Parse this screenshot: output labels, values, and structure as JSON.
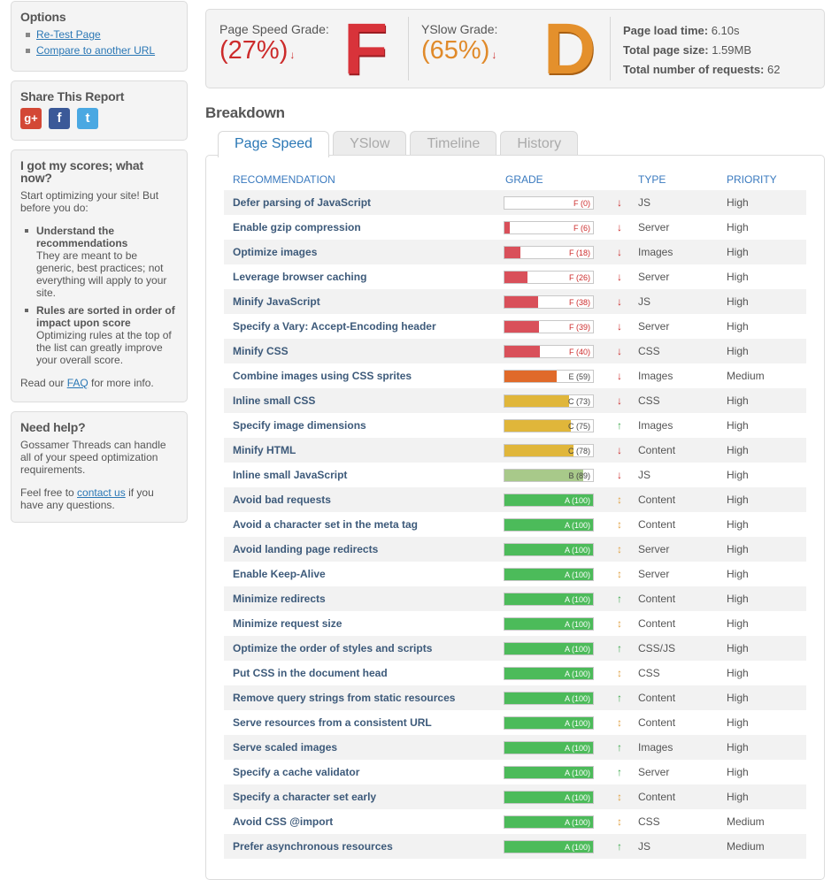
{
  "sidebar": {
    "options": {
      "title": "Options",
      "links": [
        "Re-Test Page",
        "Compare to another URL"
      ]
    },
    "share": {
      "title": "Share This Report",
      "icons": [
        "google-plus-icon",
        "facebook-icon",
        "twitter-icon"
      ],
      "icon_glyphs": [
        "g+",
        "f",
        "t"
      ]
    },
    "scores": {
      "title": "I got my scores; what now?",
      "intro": "Start optimizing your site! But before you do:",
      "tips": [
        {
          "heading": "Understand the recommendations",
          "body": "They are meant to be generic, best practices; not everything will apply to your site."
        },
        {
          "heading": "Rules are sorted in order of impact upon score",
          "body": "Optimizing rules at the top of the list can greatly improve your overall score."
        }
      ],
      "faq_pre": "Read our ",
      "faq_link": "FAQ",
      "faq_post": " for more info."
    },
    "help": {
      "title": "Need help?",
      "body": "Gossamer Threads can handle all of your speed optimization requirements.",
      "contact_pre": "Feel free to ",
      "contact_link": "contact us",
      "contact_post": " if you have any questions."
    }
  },
  "summary": {
    "pagespeed": {
      "label": "Page Speed Grade:",
      "value": "(27%)",
      "arrow": "↓",
      "letter": "F",
      "color": "#cc2b2b"
    },
    "yslow": {
      "label": "YSlow Grade:",
      "value": "(65%)",
      "arrow": "↓",
      "letter": "D",
      "color": "#e08a2a"
    },
    "stats": [
      {
        "label": "Page load time:",
        "value": "6.10s"
      },
      {
        "label": "Total page size:",
        "value": "1.59MB"
      },
      {
        "label": "Total number of requests:",
        "value": "62"
      }
    ]
  },
  "breakdown": {
    "title": "Breakdown",
    "tabs": [
      "Page Speed",
      "YSlow",
      "Timeline",
      "History"
    ],
    "active_tab": 0,
    "columns": [
      "RECOMMENDATION",
      "GRADE",
      "TYPE",
      "PRIORITY"
    ],
    "rows": [
      {
        "name": "Defer parsing of JavaScript",
        "grade": "F (0)",
        "score": 0,
        "trend": "down",
        "type": "JS",
        "priority": "High"
      },
      {
        "name": "Enable gzip compression",
        "grade": "F (6)",
        "score": 6,
        "trend": "down",
        "type": "Server",
        "priority": "High"
      },
      {
        "name": "Optimize images",
        "grade": "F (18)",
        "score": 18,
        "trend": "down",
        "type": "Images",
        "priority": "High"
      },
      {
        "name": "Leverage browser caching",
        "grade": "F (26)",
        "score": 26,
        "trend": "down",
        "type": "Server",
        "priority": "High"
      },
      {
        "name": "Minify JavaScript",
        "grade": "F (38)",
        "score": 38,
        "trend": "down",
        "type": "JS",
        "priority": "High"
      },
      {
        "name": "Specify a Vary: Accept-Encoding header",
        "grade": "F (39)",
        "score": 39,
        "trend": "down",
        "type": "Server",
        "priority": "High"
      },
      {
        "name": "Minify CSS",
        "grade": "F (40)",
        "score": 40,
        "trend": "down",
        "type": "CSS",
        "priority": "High"
      },
      {
        "name": "Combine images using CSS sprites",
        "grade": "E (59)",
        "score": 59,
        "trend": "down",
        "type": "Images",
        "priority": "Medium"
      },
      {
        "name": "Inline small CSS",
        "grade": "C (73)",
        "score": 73,
        "trend": "down",
        "type": "CSS",
        "priority": "High"
      },
      {
        "name": "Specify image dimensions",
        "grade": "C (75)",
        "score": 75,
        "trend": "up",
        "type": "Images",
        "priority": "High"
      },
      {
        "name": "Minify HTML",
        "grade": "C (78)",
        "score": 78,
        "trend": "down",
        "type": "Content",
        "priority": "High"
      },
      {
        "name": "Inline small JavaScript",
        "grade": "B (89)",
        "score": 89,
        "trend": "down",
        "type": "JS",
        "priority": "High"
      },
      {
        "name": "Avoid bad requests",
        "grade": "A (100)",
        "score": 100,
        "trend": "same",
        "type": "Content",
        "priority": "High"
      },
      {
        "name": "Avoid a character set in the meta tag",
        "grade": "A (100)",
        "score": 100,
        "trend": "same",
        "type": "Content",
        "priority": "High"
      },
      {
        "name": "Avoid landing page redirects",
        "grade": "A (100)",
        "score": 100,
        "trend": "same",
        "type": "Server",
        "priority": "High"
      },
      {
        "name": "Enable Keep-Alive",
        "grade": "A (100)",
        "score": 100,
        "trend": "same",
        "type": "Server",
        "priority": "High"
      },
      {
        "name": "Minimize redirects",
        "grade": "A (100)",
        "score": 100,
        "trend": "up",
        "type": "Content",
        "priority": "High"
      },
      {
        "name": "Minimize request size",
        "grade": "A (100)",
        "score": 100,
        "trend": "same",
        "type": "Content",
        "priority": "High"
      },
      {
        "name": "Optimize the order of styles and scripts",
        "grade": "A (100)",
        "score": 100,
        "trend": "up",
        "type": "CSS/JS",
        "priority": "High"
      },
      {
        "name": "Put CSS in the document head",
        "grade": "A (100)",
        "score": 100,
        "trend": "same",
        "type": "CSS",
        "priority": "High"
      },
      {
        "name": "Remove query strings from static resources",
        "grade": "A (100)",
        "score": 100,
        "trend": "up",
        "type": "Content",
        "priority": "High"
      },
      {
        "name": "Serve resources from a consistent URL",
        "grade": "A (100)",
        "score": 100,
        "trend": "same",
        "type": "Content",
        "priority": "High"
      },
      {
        "name": "Serve scaled images",
        "grade": "A (100)",
        "score": 100,
        "trend": "up",
        "type": "Images",
        "priority": "High"
      },
      {
        "name": "Specify a cache validator",
        "grade": "A (100)",
        "score": 100,
        "trend": "up",
        "type": "Server",
        "priority": "High"
      },
      {
        "name": "Specify a character set early",
        "grade": "A (100)",
        "score": 100,
        "trend": "same",
        "type": "Content",
        "priority": "High"
      },
      {
        "name": "Avoid CSS @import",
        "grade": "A (100)",
        "score": 100,
        "trend": "same",
        "type": "CSS",
        "priority": "Medium"
      },
      {
        "name": "Prefer asynchronous resources",
        "grade": "A (100)",
        "score": 100,
        "trend": "up",
        "type": "JS",
        "priority": "Medium"
      }
    ]
  },
  "colors": {
    "grade_a": "#4cbb5a",
    "grade_b": "#a8c98a",
    "grade_c": "#e0b63a",
    "grade_e": "#e06a2a",
    "grade_f": "#d9505a",
    "trend_down": "#cc2b2b",
    "trend_up": "#3aa84a",
    "trend_same": "#e0a040"
  }
}
